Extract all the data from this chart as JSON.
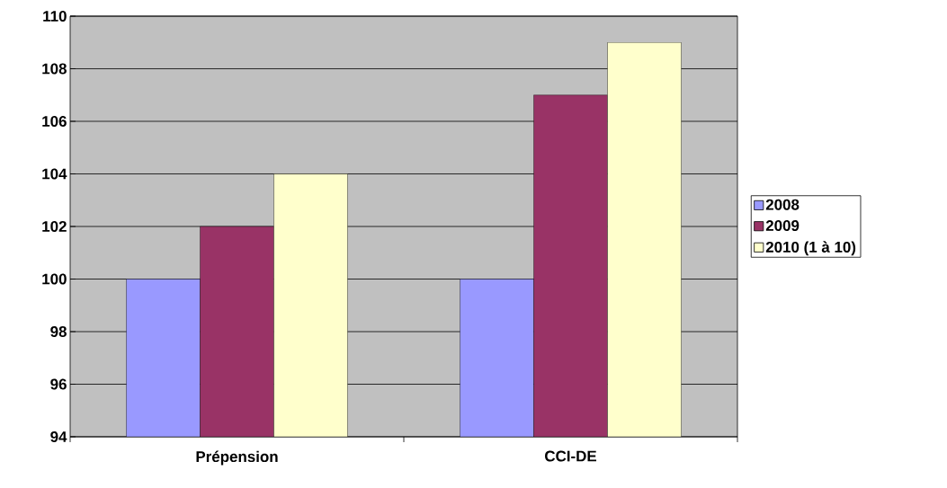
{
  "chart_data": {
    "type": "bar",
    "categories": [
      "Prépension",
      "CCI-DE"
    ],
    "series": [
      {
        "name": "2008",
        "color": "#9999ff",
        "values": [
          100,
          100
        ]
      },
      {
        "name": "2009",
        "color": "#993366",
        "values": [
          102,
          107
        ]
      },
      {
        "name": "2010 (1 à 10)",
        "color": "#ffffcc",
        "values": [
          104,
          109
        ]
      }
    ],
    "ylim": [
      94,
      110
    ],
    "yticks": [
      94,
      96,
      98,
      100,
      102,
      104,
      106,
      108,
      110
    ],
    "grid": "y",
    "legend": "right"
  }
}
